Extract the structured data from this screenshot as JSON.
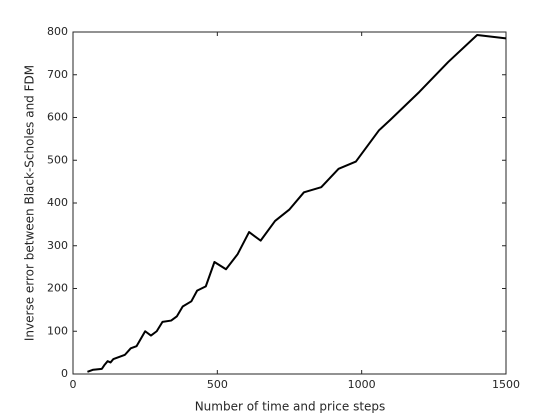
{
  "chart_data": {
    "type": "line",
    "xlabel": "Number of time and price steps",
    "ylabel": "Inverse error between Black-Scholes and FDM",
    "x": [
      50,
      70,
      100,
      110,
      120,
      130,
      140,
      160,
      180,
      200,
      220,
      250,
      270,
      290,
      310,
      340,
      360,
      380,
      410,
      430,
      460,
      490,
      530,
      570,
      610,
      650,
      700,
      750,
      800,
      860,
      920,
      980,
      1060,
      1100,
      1200,
      1300,
      1400,
      1500
    ],
    "series": [
      {
        "name": "Inverse error",
        "color": "#000000",
        "values": [
          5,
          10,
          12,
          22,
          30,
          27,
          35,
          40,
          45,
          60,
          65,
          100,
          90,
          100,
          122,
          125,
          135,
          158,
          170,
          195,
          205,
          262,
          245,
          280,
          332,
          312,
          358,
          385,
          425,
          437,
          480,
          497,
          570,
          595,
          660,
          730,
          793,
          785
        ]
      }
    ],
    "xlim": [
      0,
      1500
    ],
    "xticks": [
      0,
      500,
      1000,
      1500
    ],
    "ylim": [
      0,
      800
    ],
    "yticks": [
      0,
      100,
      200,
      300,
      400,
      500,
      600,
      700,
      800
    ]
  }
}
